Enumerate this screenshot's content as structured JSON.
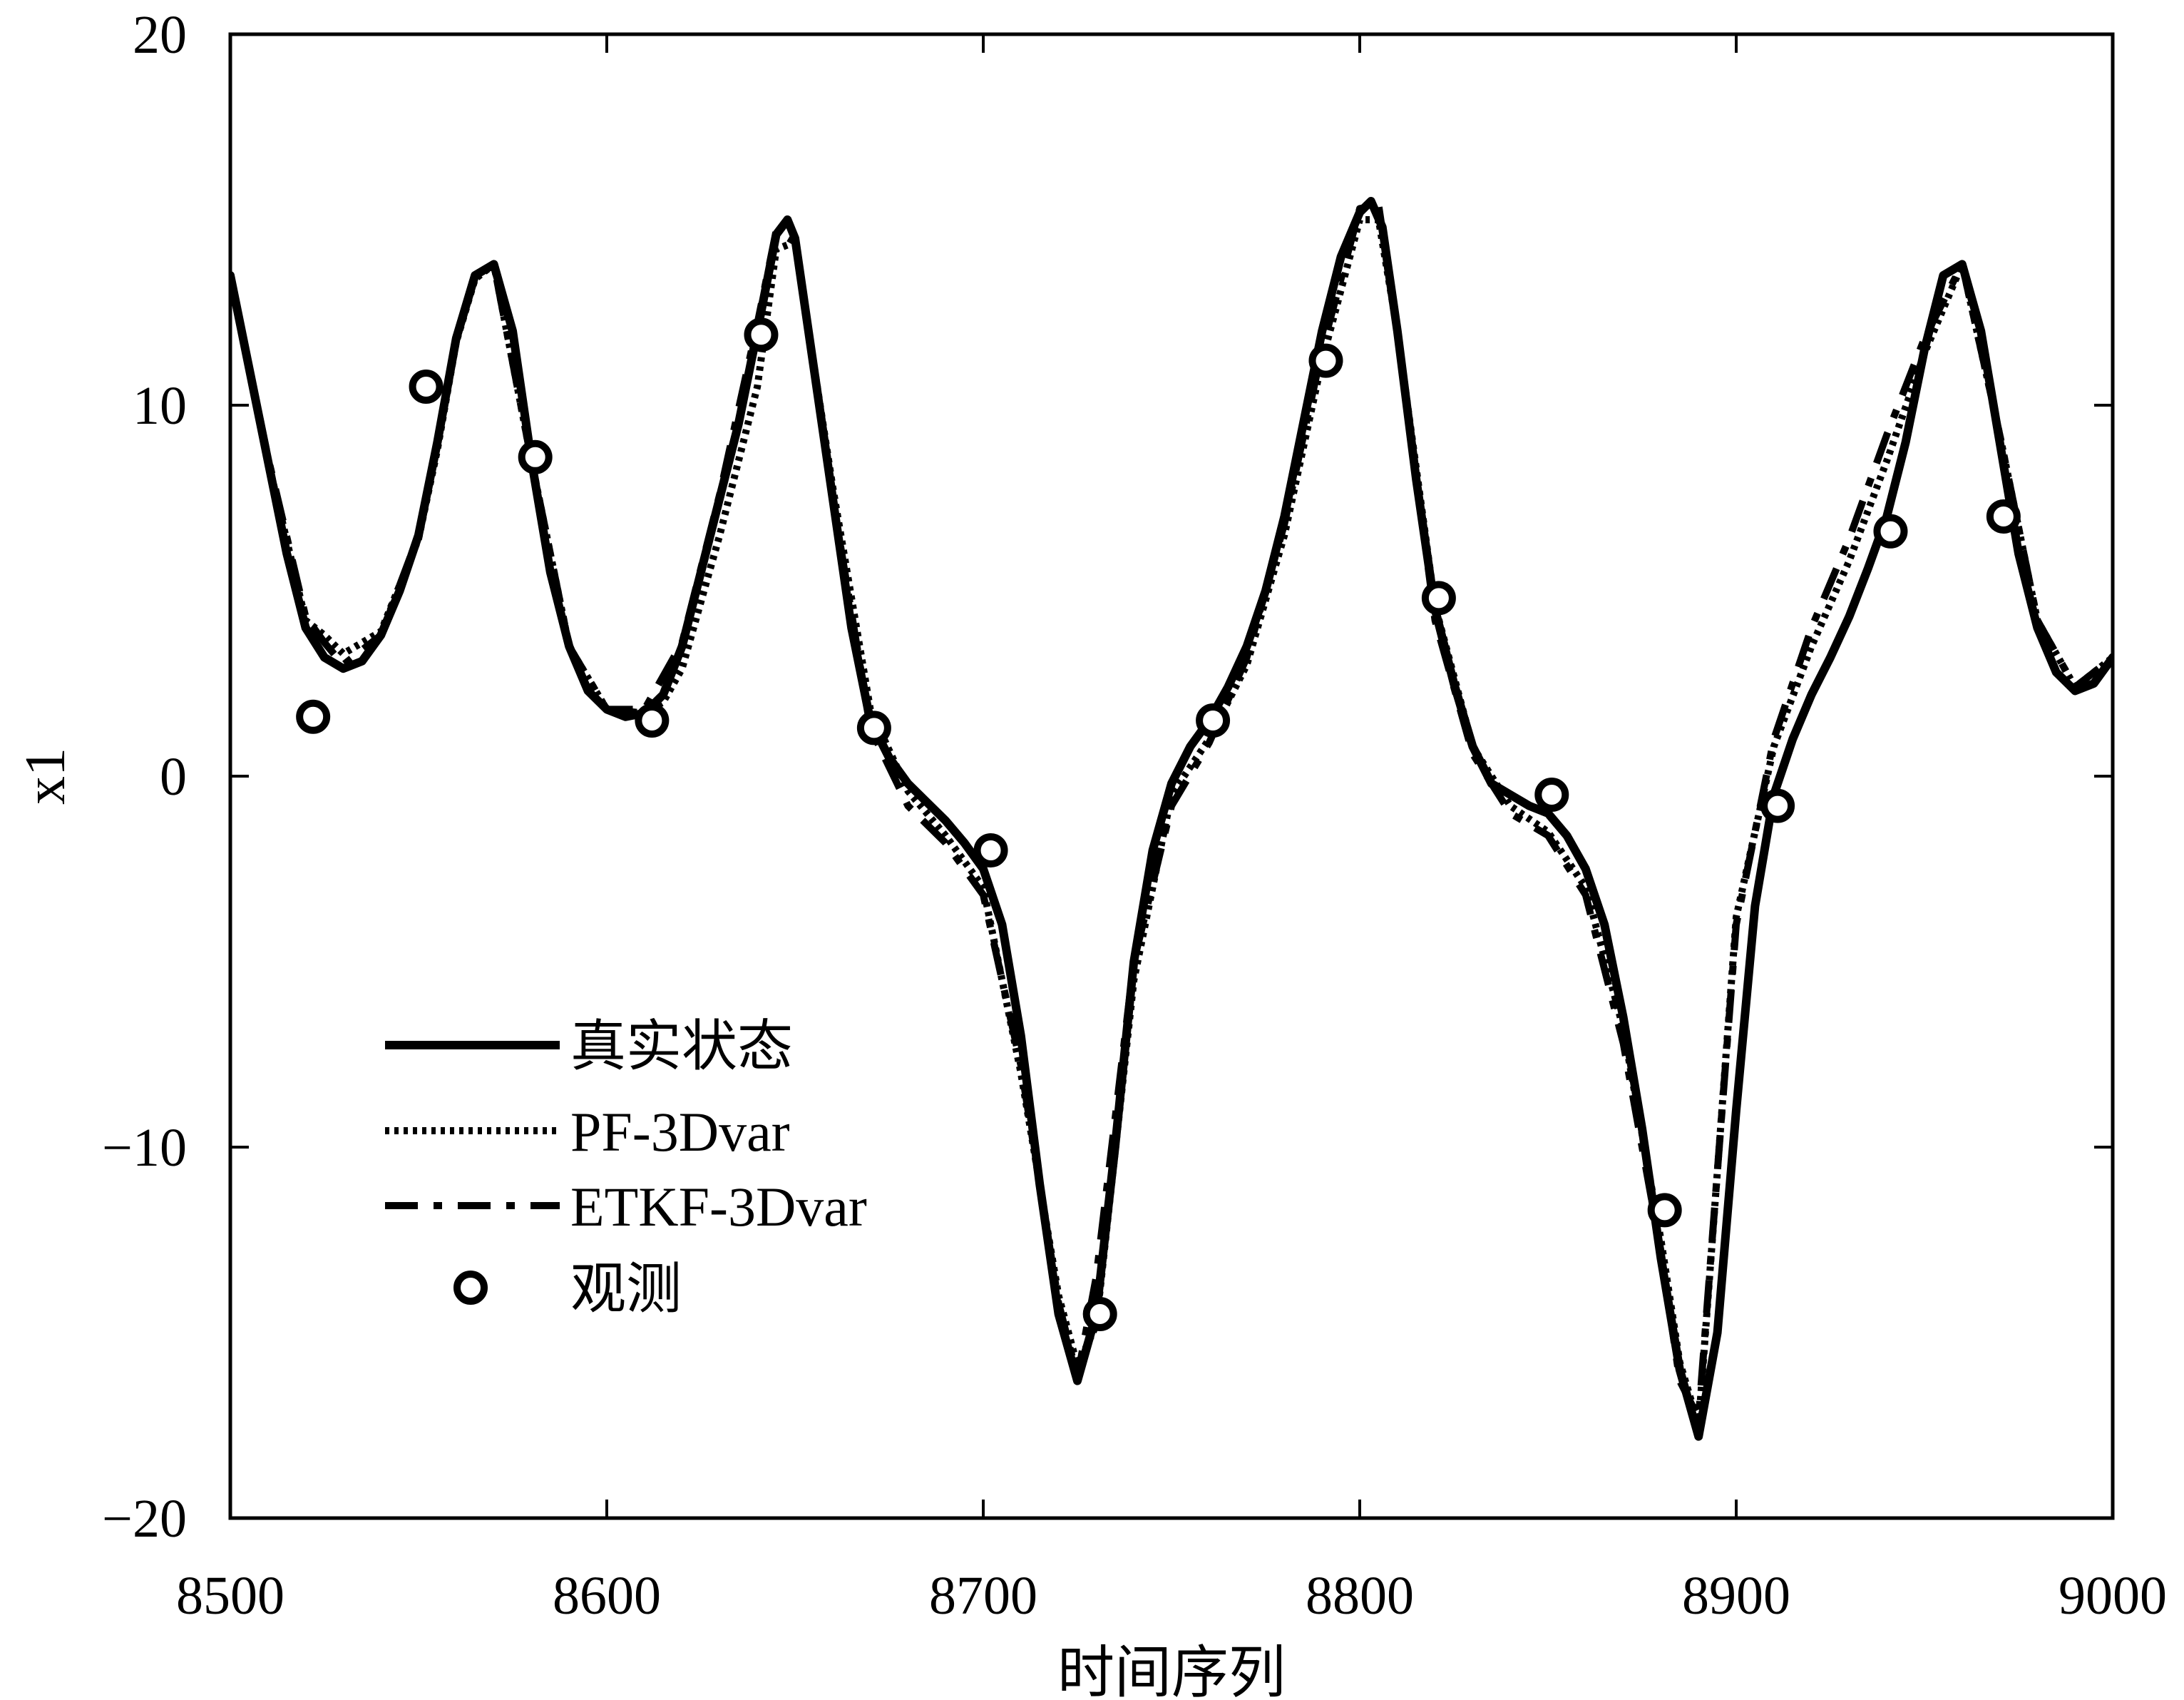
{
  "chart_data": {
    "type": "line",
    "xlabel": "时间序列",
    "ylabel": "x1",
    "xlim": [
      8500,
      9000
    ],
    "ylim": [
      -20,
      20
    ],
    "xticks": [
      8500,
      8600,
      8700,
      8800,
      8900,
      9000
    ],
    "yticks": [
      -20,
      -10,
      0,
      10,
      20
    ],
    "xtick_labels": [
      "8500",
      "8600",
      "8700",
      "8800",
      "8900",
      "9000"
    ],
    "ytick_labels": [
      "−20",
      "−10",
      "0",
      "10",
      "20"
    ],
    "grid": false,
    "legend_position": "lower-left",
    "series": [
      {
        "name": "真实状态",
        "style": "solid",
        "x": [
          8500,
          8505,
          8510,
          8515,
          8520,
          8525,
          8530,
          8535,
          8540,
          8545,
          8550,
          8555,
          8560,
          8565,
          8570,
          8575,
          8580,
          8585,
          8590,
          8595,
          8600,
          8605,
          8610,
          8615,
          8620,
          8625,
          8630,
          8635,
          8640,
          8645,
          8648,
          8650,
          8655,
          8660,
          8665,
          8670,
          8675,
          8680,
          8685,
          8690,
          8695,
          8700,
          8705,
          8710,
          8715,
          8720,
          8725,
          8730,
          8735,
          8740,
          8745,
          8750,
          8755,
          8760,
          8765,
          8770,
          8775,
          8780,
          8785,
          8790,
          8795,
          8800,
          8803,
          8806,
          8810,
          8815,
          8820,
          8825,
          8830,
          8835,
          8840,
          8845,
          8850,
          8855,
          8860,
          8865,
          8870,
          8875,
          8880,
          8885,
          8890,
          8895,
          8900,
          8905,
          8910,
          8915,
          8920,
          8925,
          8930,
          8935,
          8940,
          8945,
          8950,
          8955,
          8960,
          8965,
          8970,
          8975,
          8980,
          8985,
          8990,
          8995,
          9000
        ],
        "y": [
          13.5,
          11,
          8.5,
          6,
          4,
          3.2,
          2.9,
          3.1,
          3.8,
          5,
          6.5,
          9,
          11.8,
          13.5,
          13.8,
          12,
          8.5,
          5.5,
          3.5,
          2.3,
          1.8,
          1.6,
          1.7,
          2.2,
          3.5,
          5.5,
          7.5,
          9.5,
          12,
          14.6,
          15,
          14.5,
          11,
          7.5,
          4,
          1.5,
          0.5,
          -0.2,
          -0.7,
          -1.2,
          -1.8,
          -2.5,
          -4,
          -7,
          -11,
          -14.5,
          -16.3,
          -14.5,
          -10,
          -5,
          -2,
          -0.2,
          0.8,
          1.5,
          2.4,
          3.5,
          5,
          7,
          9.5,
          12,
          14,
          15.2,
          15.5,
          14.8,
          12,
          8,
          4.5,
          2.5,
          0.8,
          -0.2,
          -0.5,
          -0.8,
          -1,
          -1.6,
          -2.5,
          -4,
          -6.5,
          -9.5,
          -13,
          -16,
          -17.8,
          -15,
          -9,
          -3.5,
          -0.5,
          1,
          2.2,
          3.2,
          4.3,
          5.6,
          7,
          9,
          11.5,
          13.5,
          13.8,
          12,
          9,
          6,
          4,
          2.8,
          2.3,
          2.5,
          3.2
        ]
      },
      {
        "name": "PF-3Dvar",
        "style": "dotted",
        "x": [
          8500,
          8510,
          8520,
          8525,
          8530,
          8540,
          8550,
          8555,
          8560,
          8565,
          8570,
          8580,
          8590,
          8600,
          8610,
          8615,
          8620,
          8630,
          8640,
          8645,
          8650,
          8660,
          8670,
          8680,
          8690,
          8700,
          8710,
          8720,
          8725,
          8730,
          8740,
          8750,
          8760,
          8770,
          8780,
          8790,
          8800,
          8805,
          8810,
          8820,
          8830,
          8840,
          8850,
          8860,
          8870,
          8880,
          8885,
          8890,
          8900,
          8910,
          8920,
          8930,
          8940,
          8950,
          8960,
          8970,
          8980,
          8990,
          9000
        ],
        "y": [
          13.5,
          8.5,
          4.2,
          3.8,
          3.3,
          3.9,
          6.4,
          8.8,
          11.7,
          13.4,
          13.8,
          8.5,
          3.5,
          1.8,
          1.7,
          2,
          2.9,
          6.5,
          10.5,
          14.2,
          14.4,
          7.8,
          1.8,
          -0.4,
          -1.6,
          -3,
          -8,
          -14,
          -15.9,
          -14.8,
          -5.5,
          -0.5,
          1,
          3,
          6.5,
          11.2,
          15,
          15,
          12,
          4.6,
          0.8,
          -0.8,
          -1.5,
          -3,
          -6.8,
          -12.5,
          -15.8,
          -17.5,
          -3.8,
          0.8,
          3.5,
          5.8,
          8.5,
          11.4,
          13.8,
          9.2,
          4.2,
          2.4,
          3.2
        ]
      },
      {
        "name": "ETKF-3Dvar",
        "style": "dash-dot",
        "x": [
          8500,
          8510,
          8520,
          8525,
          8530,
          8540,
          8550,
          8555,
          8560,
          8565,
          8570,
          8580,
          8590,
          8600,
          8610,
          8620,
          8630,
          8640,
          8645,
          8650,
          8660,
          8670,
          8680,
          8690,
          8700,
          8710,
          8720,
          8725,
          8730,
          8740,
          8750,
          8760,
          8770,
          8780,
          8790,
          8800,
          8805,
          8810,
          8820,
          8830,
          8840,
          8850,
          8860,
          8870,
          8880,
          8885,
          8890,
          8900,
          8910,
          8920,
          8930,
          8940,
          8950,
          8960,
          8970,
          8980,
          8990,
          9000
        ],
        "y": [
          13.5,
          8.6,
          4.3,
          3.6,
          3,
          3.8,
          6.5,
          9,
          11.8,
          13.5,
          13.8,
          8.5,
          3.5,
          1.8,
          1.8,
          3.6,
          7.6,
          12.2,
          14.7,
          14.4,
          7.5,
          1.3,
          -0.8,
          -1.8,
          -3.2,
          -7.8,
          -14.2,
          -16.2,
          -13.5,
          -5,
          -0.8,
          0.9,
          3.2,
          6.8,
          11.5,
          15.3,
          15.4,
          12,
          4.2,
          0.6,
          -1,
          -1.6,
          -3.2,
          -7.2,
          -12.8,
          -16.3,
          -17.3,
          -4,
          1,
          4,
          6.4,
          9.2,
          11.8,
          13.8,
          9.2,
          4.2,
          2.4,
          3.2
        ]
      },
      {
        "name": "观测",
        "style": "marker",
        "x": [
          8522,
          8552,
          8581,
          8612,
          8641,
          8671,
          8702,
          8731,
          8761,
          8791,
          8821,
          8851,
          8881,
          8911,
          8941,
          8971
        ],
        "y": [
          1.6,
          10.5,
          8.6,
          1.5,
          11.9,
          1.3,
          -2,
          -14.5,
          1.5,
          11.2,
          4.8,
          -0.5,
          -11.7,
          -0.8,
          6.6,
          7
        ]
      }
    ]
  }
}
